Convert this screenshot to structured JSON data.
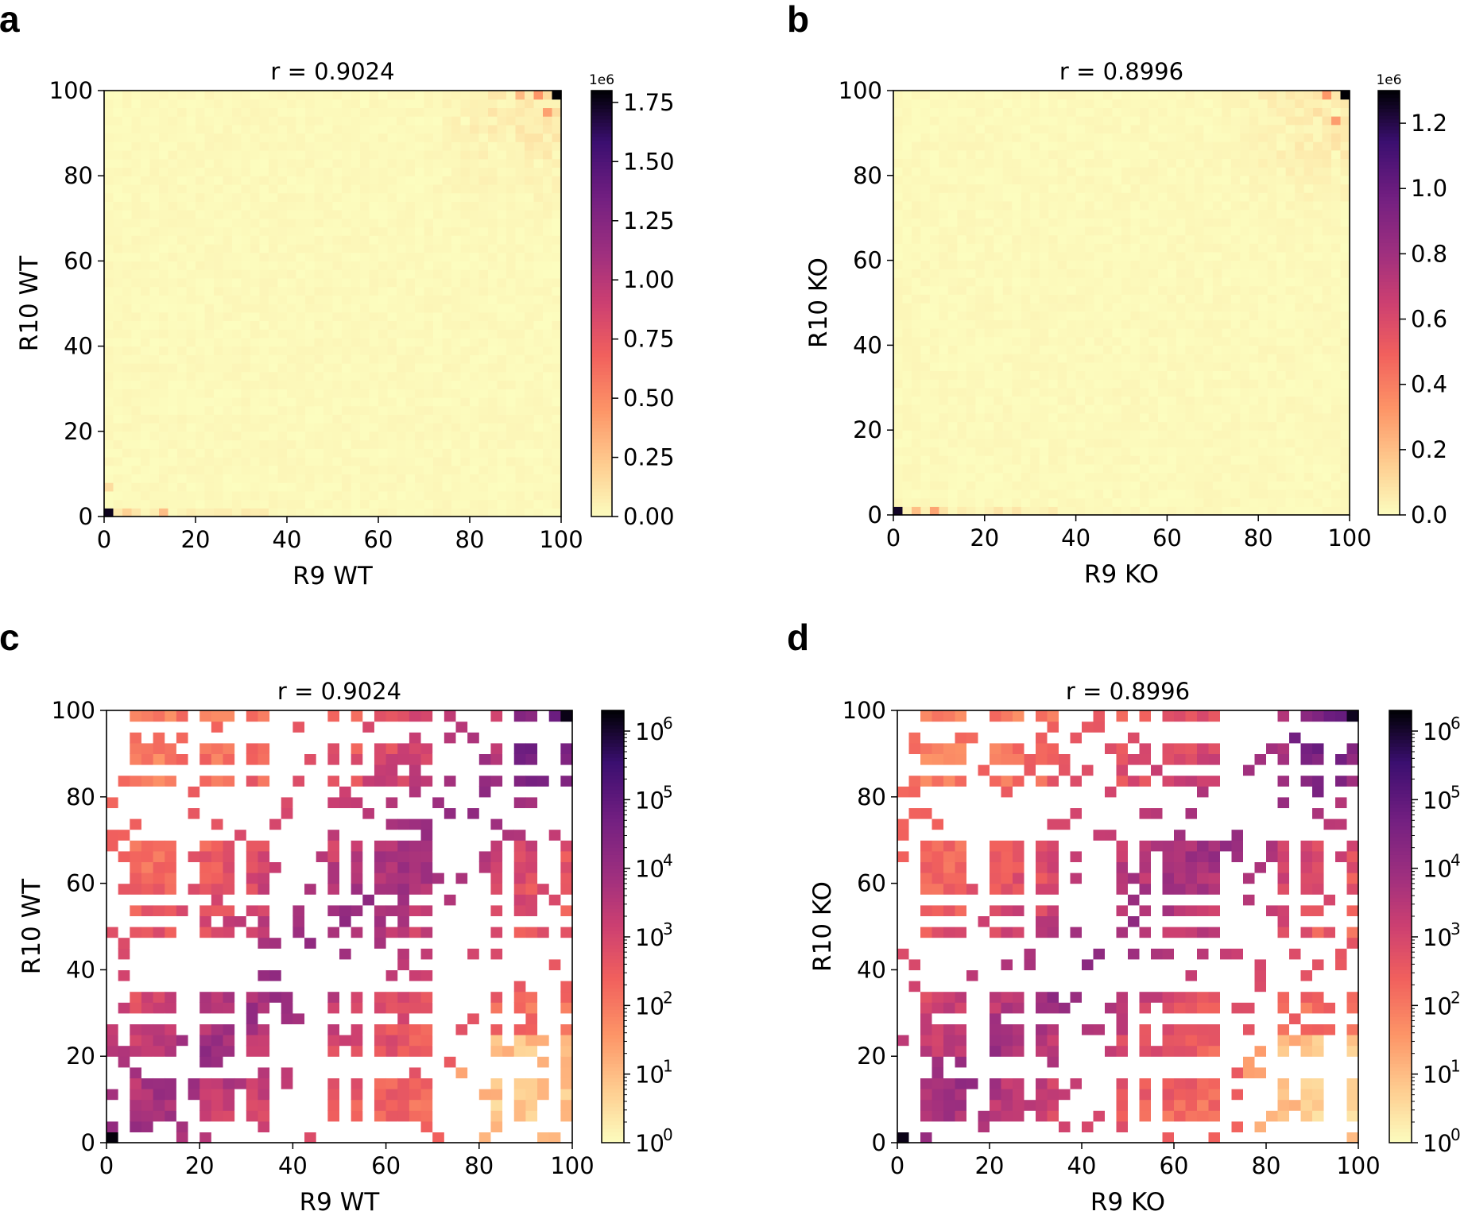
{
  "chart_data": [
    {
      "panel": "a",
      "type": "heatmap",
      "title": "r = 0.9024",
      "xlabel": "R9 WT",
      "ylabel": "R10 WT",
      "xlim": [
        0,
        100
      ],
      "ylim": [
        0,
        100
      ],
      "xticks": [
        "0",
        "20",
        "40",
        "60",
        "80",
        "100"
      ],
      "yticks": [
        "0",
        "20",
        "40",
        "60",
        "80",
        "100"
      ],
      "scale": "linear",
      "colormap": "magma_r",
      "colorbar": {
        "range": [
          0,
          1800000
        ],
        "multiplier": "1e6",
        "ticks": [
          0,
          0.25,
          0.5,
          0.75,
          1.0,
          1.25,
          1.5,
          1.75
        ],
        "tick_labels": [
          "0.00",
          "0.25",
          "0.50",
          "0.75",
          "1.00",
          "1.25",
          "1.50",
          "1.75"
        ]
      },
      "grid_size": 50,
      "hotspots": [
        {
          "x": 1,
          "y": 1,
          "value": 1750000
        },
        {
          "x": 99,
          "y": 99,
          "value": 1800000
        },
        {
          "x": 95,
          "y": 99,
          "value": 450000
        },
        {
          "x": 97,
          "y": 95,
          "value": 400000
        },
        {
          "x": 91,
          "y": 99,
          "value": 300000
        },
        {
          "x": 13,
          "y": 1,
          "value": 280000
        },
        {
          "x": 5,
          "y": 1,
          "value": 200000
        },
        {
          "x": 1,
          "y": 7,
          "value": 150000
        }
      ]
    },
    {
      "panel": "b",
      "type": "heatmap",
      "title": "r = 0.8996",
      "xlabel": "R9 KO",
      "ylabel": "R10 KO",
      "xlim": [
        0,
        100
      ],
      "ylim": [
        0,
        100
      ],
      "xticks": [
        "0",
        "20",
        "40",
        "60",
        "80",
        "100"
      ],
      "yticks": [
        "0",
        "20",
        "40",
        "60",
        "80",
        "100"
      ],
      "scale": "linear",
      "colormap": "magma_r",
      "colorbar": {
        "range": [
          0,
          1300000
        ],
        "multiplier": "1e6",
        "ticks": [
          0,
          0.2,
          0.4,
          0.6,
          0.8,
          1.0,
          1.2
        ],
        "tick_labels": [
          "0.0",
          "0.2",
          "0.4",
          "0.6",
          "0.8",
          "1.0",
          "1.2"
        ]
      },
      "grid_size": 50,
      "hotspots": [
        {
          "x": 1,
          "y": 1,
          "value": 1250000
        },
        {
          "x": 99,
          "y": 99,
          "value": 1300000
        },
        {
          "x": 95,
          "y": 99,
          "value": 320000
        },
        {
          "x": 97,
          "y": 93,
          "value": 300000
        },
        {
          "x": 9,
          "y": 1,
          "value": 280000
        },
        {
          "x": 5,
          "y": 1,
          "value": 200000
        }
      ]
    },
    {
      "panel": "c",
      "type": "heatmap",
      "title": "r = 0.9024",
      "xlabel": "R9 WT",
      "ylabel": "R10 WT",
      "xlim": [
        0,
        100
      ],
      "ylim": [
        0,
        100
      ],
      "xticks": [
        "0",
        "20",
        "40",
        "60",
        "80",
        "100"
      ],
      "yticks": [
        "0",
        "20",
        "40",
        "60",
        "80",
        "100"
      ],
      "scale": "log",
      "colormap": "magma_r",
      "colorbar": {
        "range": [
          1,
          2000000
        ],
        "ticks": [
          1,
          10,
          100,
          1000,
          10000,
          100000,
          1000000
        ],
        "tick_bases": [
          "10",
          "10",
          "10",
          "10",
          "10",
          "10",
          "10"
        ],
        "tick_exponents": [
          "0",
          "1",
          "2",
          "3",
          "4",
          "5",
          "6"
        ]
      },
      "grid_size": 40,
      "empty_bins": [
        1,
        2,
        3,
        17,
        19,
        28,
        35,
        36,
        39,
        41,
        43,
        47,
        51,
        55,
        72,
        74,
        76,
        78,
        80,
        82,
        85,
        93,
        95,
        97
      ],
      "hotspots": [
        {
          "x": 1,
          "y": 1,
          "value": 1800000
        },
        {
          "x": 99,
          "y": 99,
          "value": 1500000
        }
      ]
    },
    {
      "panel": "d",
      "type": "heatmap",
      "title": "r = 0.8996",
      "xlabel": "R9 KO",
      "ylabel": "R10 KO",
      "xlim": [
        0,
        100
      ],
      "ylim": [
        0,
        100
      ],
      "xticks": [
        "0",
        "20",
        "40",
        "60",
        "80",
        "100"
      ],
      "yticks": [
        "0",
        "20",
        "40",
        "60",
        "80",
        "100"
      ],
      "scale": "log",
      "colormap": "magma_r",
      "colorbar": {
        "range": [
          1,
          2000000
        ],
        "ticks": [
          1,
          10,
          100,
          1000,
          10000,
          100000,
          1000000
        ],
        "tick_bases": [
          "10",
          "10",
          "10",
          "10",
          "10",
          "10",
          "10"
        ],
        "tick_exponents": [
          "0",
          "1",
          "2",
          "3",
          "4",
          "5",
          "6"
        ]
      },
      "grid_size": 40,
      "empty_bins": [
        1,
        2,
        3,
        17,
        19,
        28,
        35,
        36,
        39,
        41,
        43,
        47,
        51,
        55,
        72,
        74,
        76,
        78,
        80,
        82,
        85,
        93,
        95,
        97
      ],
      "hotspots": [
        {
          "x": 1,
          "y": 1,
          "value": 1500000
        },
        {
          "x": 99,
          "y": 99,
          "value": 1300000
        }
      ]
    }
  ]
}
